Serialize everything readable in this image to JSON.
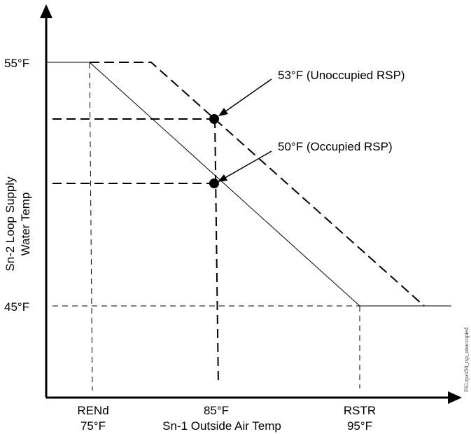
{
  "y_axis": {
    "label_line1": "Sn-2 Loop Supply",
    "label_line2": "Water Temp",
    "tick_high": "55°F",
    "tick_low": "45°F"
  },
  "x_axis": {
    "label": "Sn-1 Outside Air Temp",
    "rend_label": "RENd",
    "rend_value": "75°F",
    "mid_value": "85°F",
    "rstr_label": "RSTR",
    "rstr_value": "95°F"
  },
  "annotations": {
    "unoccupied": "53°F (Unoccupied RSP)",
    "occupied": "50°F (Occupied RSP)"
  },
  "figure_id": "FIG:rpz450_rsp_unoccupied",
  "chart_data": {
    "type": "line",
    "series": [
      {
        "name": "Occupied",
        "points": [
          [
            75,
            55
          ],
          [
            95,
            45
          ]
        ]
      },
      {
        "name": "Unoccupied",
        "points": [
          [
            75,
            55
          ],
          [
            95,
            45
          ]
        ]
      }
    ],
    "markers": [
      {
        "x": 85,
        "y": 53
      },
      {
        "x": 85,
        "y": 50
      }
    ],
    "line_styles": {
      "occupied": "solid",
      "unoccupied": "dashed"
    }
  }
}
